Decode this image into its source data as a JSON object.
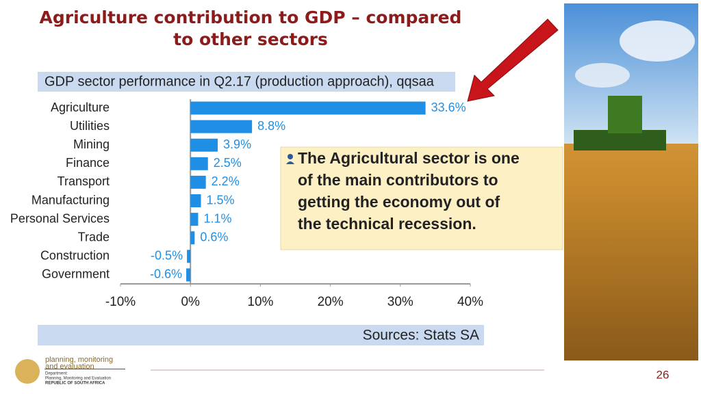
{
  "slide_title": [
    "Agriculture contribution to GDP – compared",
    "to other sectors"
  ],
  "chart_data": {
    "type": "bar",
    "orientation": "horizontal",
    "title": "GDP sector performance in Q2.17 (production approach), qqsaa",
    "categories": [
      "Agriculture",
      "Utilities",
      "Mining",
      "Finance",
      "Transport",
      "Manufacturing",
      "Personal Services",
      "Trade",
      "Construction",
      "Government"
    ],
    "values": [
      33.6,
      8.8,
      3.9,
      2.5,
      2.2,
      1.5,
      1.1,
      0.6,
      -0.5,
      -0.6
    ],
    "value_labels": [
      "33.6%",
      "8.8%",
      "3.9%",
      "2.5%",
      "2.2%",
      "1.5%",
      "1.1%",
      "0.6%",
      "-0.5%",
      "-0.6%"
    ],
    "color": "#1f8fe5",
    "xlim": [
      -10,
      40
    ],
    "xticks": [
      {
        "value": -10,
        "label": "-10%"
      },
      {
        "value": 0,
        "label": "0%"
      },
      {
        "value": 10,
        "label": "10%"
      },
      {
        "value": 20,
        "label": "20%"
      },
      {
        "value": 30,
        "label": "30%"
      },
      {
        "value": 40,
        "label": "40%"
      }
    ],
    "source": "Sources: Stats SA"
  },
  "callout": {
    "lines": [
      "The Agricultural sector is one",
      "of the main contributors to",
      "getting the economy out of",
      "the technical recession."
    ]
  },
  "logo": {
    "name": [
      "planning, monitoring",
      "and evaluation"
    ],
    "dept": [
      "Department:",
      "Planning, Monitoring and Evaluation",
      "REPUBLIC OF SOUTH AFRICA"
    ]
  },
  "page_number": "26"
}
